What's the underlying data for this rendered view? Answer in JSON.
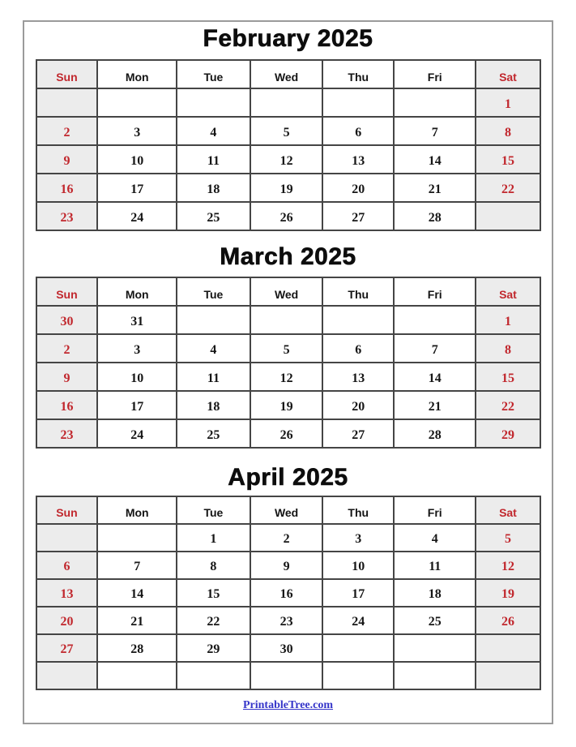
{
  "page": {
    "footer_link": "PrintableTree.com",
    "colors": {
      "accent_red": "#c1272d",
      "weekend_bg": "#ececec",
      "grid_border": "#454545",
      "page_border": "#9b9b9b",
      "link_blue": "#3535c9"
    }
  },
  "weekdays": [
    "Sun",
    "Mon",
    "Tue",
    "Wed",
    "Thu",
    "Fri",
    "Sat"
  ],
  "weekend_columns": [
    0,
    6
  ],
  "column_widths_pct": [
    12.2,
    15.7,
    14.6,
    14.4,
    14.1,
    16.3,
    12.7
  ],
  "months": [
    {
      "title": "February 2025",
      "weeks": [
        [
          "",
          "",
          "",
          "",
          "",
          "",
          "1"
        ],
        [
          "2",
          "3",
          "4",
          "5",
          "6",
          "7",
          "8"
        ],
        [
          "9",
          "10",
          "11",
          "12",
          "13",
          "14",
          "15"
        ],
        [
          "16",
          "17",
          "18",
          "19",
          "20",
          "21",
          "22"
        ],
        [
          "23",
          "24",
          "25",
          "26",
          "27",
          "28",
          ""
        ]
      ]
    },
    {
      "title": "March 2025",
      "weeks": [
        [
          "30",
          "31",
          "",
          "",
          "",
          "",
          "1"
        ],
        [
          "2",
          "3",
          "4",
          "5",
          "6",
          "7",
          "8"
        ],
        [
          "9",
          "10",
          "11",
          "12",
          "13",
          "14",
          "15"
        ],
        [
          "16",
          "17",
          "18",
          "19",
          "20",
          "21",
          "22"
        ],
        [
          "23",
          "24",
          "25",
          "26",
          "27",
          "28",
          "29"
        ]
      ]
    },
    {
      "title": "April 2025",
      "weeks": [
        [
          "",
          "",
          "1",
          "2",
          "3",
          "4",
          "5"
        ],
        [
          "6",
          "7",
          "8",
          "9",
          "10",
          "11",
          "12"
        ],
        [
          "13",
          "14",
          "15",
          "16",
          "17",
          "18",
          "19"
        ],
        [
          "20",
          "21",
          "22",
          "23",
          "24",
          "25",
          "26"
        ],
        [
          "27",
          "28",
          "29",
          "30",
          "",
          "",
          ""
        ],
        [
          "",
          "",
          "",
          "",
          "",
          "",
          ""
        ]
      ]
    }
  ]
}
